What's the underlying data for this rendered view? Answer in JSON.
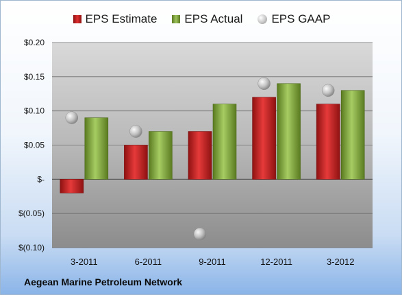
{
  "chart_data": {
    "type": "bar",
    "categories": [
      "3-2011",
      "6-2011",
      "9-2011",
      "12-2011",
      "3-2012"
    ],
    "series": [
      {
        "name": "EPS Estimate",
        "kind": "bar",
        "color": "#c42222",
        "values": [
          -0.02,
          0.05,
          0.07,
          0.12,
          0.11
        ]
      },
      {
        "name": "EPS Actual",
        "kind": "bar",
        "color": "#8cb04a",
        "values": [
          0.09,
          0.07,
          0.11,
          0.14,
          0.13
        ]
      },
      {
        "name": "EPS GAAP",
        "kind": "scatter",
        "color": "#b5b5b5",
        "values": [
          0.09,
          0.07,
          -0.08,
          0.14,
          0.13
        ]
      }
    ],
    "ylim": [
      -0.1,
      0.2
    ],
    "yticks": [
      0.2,
      0.15,
      0.1,
      0.05,
      0,
      -0.05,
      -0.1
    ],
    "ytick_labels": [
      "$0.20",
      "$0.15",
      "$0.10",
      "$0.05",
      "$-",
      "$(0.05)",
      "$(0.10)"
    ],
    "grid": true,
    "legend": "top"
  },
  "footer": "Aegean Marine Petroleum Network"
}
